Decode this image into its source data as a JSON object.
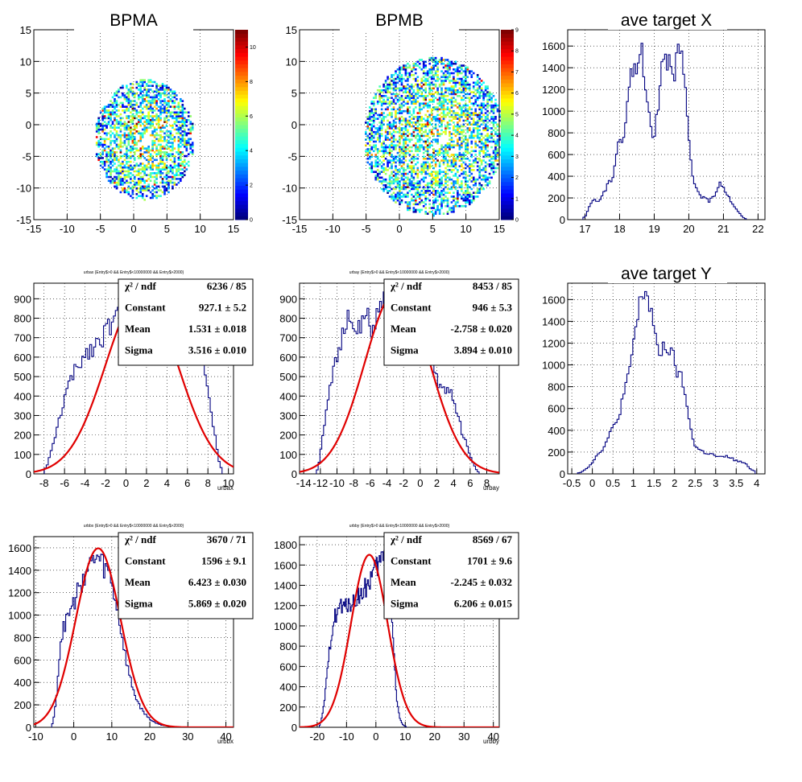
{
  "chart_data": [
    {
      "type": "heatmap",
      "title": "BPMA",
      "xlim": [
        -15,
        15
      ],
      "ylim": [
        -15,
        15
      ],
      "x_ticks": [
        "-15",
        "-10",
        "-5",
        "0",
        "5",
        "10",
        "15"
      ],
      "y_ticks": [
        "-15",
        "-10",
        "-5",
        "0",
        "5",
        "10",
        "15"
      ],
      "z_ticks": [
        "0",
        "2",
        "4",
        "6",
        "8",
        "10"
      ],
      "zlim": [
        0,
        11
      ],
      "grid": true,
      "spot": {
        "center": [
          1.5,
          -2.5
        ],
        "radius_x": 7.5,
        "radius_y": 9.5,
        "hole": [
          1.8,
          -2.7
        ]
      }
    },
    {
      "type": "heatmap",
      "title": "BPMB",
      "xlim": [
        -15,
        15
      ],
      "ylim": [
        -15,
        15
      ],
      "x_ticks": [
        "-15",
        "-10",
        "-5",
        "0",
        "5",
        "10",
        "15"
      ],
      "y_ticks": [
        "-15",
        "-10",
        "-5",
        "0",
        "5",
        "10",
        "15"
      ],
      "z_ticks": [
        "0",
        "1",
        "2",
        "3",
        "4",
        "5",
        "6",
        "7",
        "8",
        "9"
      ],
      "zlim": [
        0,
        9
      ],
      "grid": true,
      "spot": {
        "center": [
          5.0,
          -2.0
        ],
        "radius_x": 10.5,
        "radius_y": 12.5,
        "hole": [
          6.5,
          -2.5
        ]
      }
    },
    {
      "type": "line",
      "subtype": "histogram",
      "title": "ave target X",
      "xlim": [
        16.5,
        22.2
      ],
      "ylim": [
        0,
        1750
      ],
      "x_ticks": [
        "17",
        "18",
        "19",
        "20",
        "21",
        "22"
      ],
      "y_ticks": [
        "0",
        "200",
        "400",
        "600",
        "800",
        "1000",
        "1200",
        "1400",
        "1600"
      ],
      "grid": true,
      "series": [
        {
          "x": [
            17.0,
            17.2,
            17.4,
            17.6,
            17.8,
            17.9,
            18.0,
            18.1,
            18.2,
            18.3,
            18.5,
            18.6,
            18.7,
            18.8,
            18.9,
            19.0,
            19.1,
            19.2,
            19.3,
            19.4,
            19.5,
            19.6,
            19.7,
            19.8,
            19.9,
            20.0,
            20.1,
            20.2,
            20.4,
            20.6,
            20.8,
            20.9,
            21.0,
            21.2,
            21.4,
            21.6
          ],
          "values": [
            20,
            180,
            170,
            280,
            400,
            600,
            780,
            700,
            1000,
            1300,
            1400,
            1670,
            1300,
            1100,
            850,
            800,
            1000,
            1430,
            1580,
            1450,
            1500,
            1370,
            1580,
            1460,
            1200,
            700,
            400,
            300,
            200,
            170,
            260,
            360,
            300,
            180,
            80,
            10
          ]
        }
      ]
    },
    {
      "type": "line",
      "subtype": "histogram",
      "title": "ave target Y",
      "xlim": [
        -0.6,
        4.2
      ],
      "ylim": [
        0,
        1750
      ],
      "x_ticks": [
        "-0.5",
        "0",
        "0.5",
        "1",
        "1.5",
        "2",
        "2.5",
        "3",
        "3.5",
        "4"
      ],
      "y_ticks": [
        "0",
        "200",
        "400",
        "600",
        "800",
        "1000",
        "1200",
        "1400",
        "1600"
      ],
      "grid": true,
      "series": [
        {
          "x": [
            -0.3,
            -0.1,
            0.1,
            0.3,
            0.5,
            0.6,
            0.8,
            0.9,
            1.0,
            1.1,
            1.2,
            1.3,
            1.4,
            1.5,
            1.6,
            1.7,
            1.8,
            1.9,
            2.0,
            2.1,
            2.2,
            2.3,
            2.4,
            2.5,
            2.7,
            2.9,
            3.1,
            3.3,
            3.5,
            3.7,
            3.9
          ],
          "values": [
            10,
            60,
            160,
            260,
            420,
            480,
            780,
            900,
            1220,
            1400,
            1650,
            1680,
            1550,
            1350,
            1050,
            1150,
            1200,
            1080,
            1050,
            880,
            860,
            600,
            420,
            250,
            200,
            180,
            150,
            160,
            120,
            100,
            30
          ]
        }
      ]
    },
    {
      "type": "line",
      "subtype": "histogram+fit",
      "title": "urbax {Entry$>0 && Entry$<10000000 && Entry$>2000}",
      "xlabel": "urbax",
      "xlim": [
        -9,
        10.5
      ],
      "ylim": [
        0,
        980
      ],
      "x_ticks": [
        "-8",
        "-6",
        "-4",
        "-2",
        "0",
        "2",
        "4",
        "6",
        "8",
        "10"
      ],
      "y_ticks": [
        "0",
        "100",
        "200",
        "300",
        "400",
        "500",
        "600",
        "700",
        "800",
        "900"
      ],
      "grid": true,
      "stats": [
        {
          "label": "χ² / ndf",
          "value": "6236 / 85"
        },
        {
          "label": "Constant",
          "value": "927.1 ± 5.2"
        },
        {
          "label": "Mean",
          "value": "1.531 ± 0.018"
        },
        {
          "label": "Sigma",
          "value": "3.516 ± 0.010"
        }
      ],
      "fit": {
        "constant": 927.1,
        "mean": 1.531,
        "sigma": 3.516
      },
      "series": [
        {
          "x": [
            -7.8,
            -7.2,
            -6.6,
            -6.0,
            -5.4,
            -4.8,
            -4.2,
            -3.6,
            -3.0,
            -2.4,
            -1.8,
            -1.2,
            -0.6,
            0.0,
            6.4,
            6.8,
            7.2,
            7.6,
            8.0,
            8.4,
            8.8,
            9.2
          ],
          "values": [
            30,
            130,
            260,
            390,
            480,
            540,
            600,
            640,
            660,
            700,
            750,
            790,
            820,
            860,
            840,
            770,
            680,
            560,
            440,
            300,
            150,
            30
          ]
        }
      ]
    },
    {
      "type": "line",
      "subtype": "histogram+fit",
      "title": "urbay {Entry$>0 && Entry$<10000000 && Entry$>2000}",
      "xlabel": "urbay",
      "xlim": [
        -14.5,
        9.5
      ],
      "ylim": [
        0,
        980
      ],
      "x_ticks": [
        "-14",
        "-12",
        "-10",
        "-8",
        "-6",
        "-4",
        "-2",
        "0",
        "2",
        "4",
        "6",
        "8"
      ],
      "y_ticks": [
        "0",
        "100",
        "200",
        "300",
        "400",
        "500",
        "600",
        "700",
        "800",
        "900"
      ],
      "grid": true,
      "stats": [
        {
          "label": "χ² / ndf",
          "value": "8453 / 85"
        },
        {
          "label": "Constant",
          "value": "946 ± 5.3"
        },
        {
          "label": "Mean",
          "value": "-2.758 ± 0.020"
        },
        {
          "label": "Sigma",
          "value": "3.894 ± 0.010"
        }
      ],
      "fit": {
        "constant": 946,
        "mean": -2.758,
        "sigma": 3.894
      },
      "series": [
        {
          "x": [
            -12.3,
            -11.7,
            -11.1,
            -10.5,
            -9.9,
            -9.3,
            -8.7,
            -8.1,
            -7.5,
            -6.9,
            -6.3,
            -5.7,
            -5.1,
            -4.5,
            1.5,
            2.1,
            2.7,
            3.3,
            3.9,
            4.5,
            5.1,
            5.7,
            6.3,
            6.9
          ],
          "values": [
            20,
            200,
            400,
            530,
            620,
            700,
            790,
            760,
            740,
            760,
            800,
            740,
            820,
            880,
            560,
            470,
            450,
            430,
            400,
            320,
            200,
            140,
            60,
            10
          ]
        }
      ]
    },
    {
      "type": "line",
      "subtype": "histogram+fit",
      "title": "urbbx {Entry$>0 && Entry$<10000000 && Entry$>2000}",
      "xlabel": "urbbx",
      "xlim": [
        -10.5,
        42
      ],
      "ylim": [
        0,
        1700
      ],
      "x_ticks": [
        "-10",
        "0",
        "10",
        "20",
        "30",
        "40"
      ],
      "y_ticks": [
        "0",
        "200",
        "400",
        "600",
        "800",
        "1000",
        "1200",
        "1400",
        "1600"
      ],
      "grid": true,
      "stats": [
        {
          "label": "χ² / ndf",
          "value": "3670 / 71"
        },
        {
          "label": "Constant",
          "value": "1596 ± 9.1"
        },
        {
          "label": "Mean",
          "value": "6.423 ± 0.030"
        },
        {
          "label": "Sigma",
          "value": "5.869 ± 0.020"
        }
      ],
      "fit": {
        "constant": 1596,
        "mean": 6.423,
        "sigma": 5.869
      },
      "series": [
        {
          "x": [
            -5.5,
            -4.5,
            -3.5,
            -2.5,
            -1.5,
            -0.5,
            0.5,
            1.5,
            2.5,
            3.5,
            4.5,
            5.5,
            6.5,
            7.5,
            8.5,
            9.5,
            10.5,
            11.5,
            12.5,
            13.5,
            14.5,
            15.5,
            16.5,
            17.5,
            18.5,
            19.5,
            20.5,
            21.5,
            23,
            25,
            27
          ],
          "values": [
            30,
            300,
            750,
            900,
            1000,
            1050,
            1150,
            1250,
            1350,
            1400,
            1450,
            1500,
            1500,
            1450,
            1400,
            1350,
            1200,
            1050,
            850,
            650,
            480,
            350,
            250,
            180,
            130,
            90,
            60,
            40,
            20,
            10,
            5
          ]
        }
      ]
    },
    {
      "type": "line",
      "subtype": "histogram+fit",
      "title": "urbby {Entry$>0 && Entry$<10000000 && Entry$>2000}",
      "xlabel": "urbby",
      "xlim": [
        -26,
        42
      ],
      "ylim": [
        0,
        1880
      ],
      "x_ticks": [
        "-20",
        "-10",
        "0",
        "10",
        "20",
        "30",
        "40"
      ],
      "y_ticks": [
        "0",
        "200",
        "400",
        "600",
        "800",
        "1000",
        "1200",
        "1400",
        "1600",
        "1800"
      ],
      "grid": true,
      "stats": [
        {
          "label": "χ² / ndf",
          "value": "8569 / 67"
        },
        {
          "label": "Constant",
          "value": "1701 ± 9.6"
        },
        {
          "label": "Mean",
          "value": "-2.245 ± 0.032"
        },
        {
          "label": "Sigma",
          "value": "6.206 ± 0.015"
        }
      ],
      "fit": {
        "constant": 1701,
        "mean": -2.245,
        "sigma": 6.206
      },
      "series": [
        {
          "x": [
            -19,
            -18,
            -17,
            -16,
            -15,
            -14,
            -13,
            -12,
            -11,
            -10,
            -9,
            -8,
            -7,
            -6,
            -5,
            -4,
            -3,
            -2,
            -1,
            0,
            1,
            2,
            3,
            4,
            5,
            6,
            7,
            8,
            9,
            10
          ],
          "values": [
            20,
            150,
            400,
            700,
            950,
            1100,
            1150,
            1200,
            1150,
            1200,
            1250,
            1200,
            1250,
            1300,
            1300,
            1350,
            1400,
            1450,
            1500,
            1550,
            1600,
            1650,
            1700,
            1750,
            1300,
            800,
            300,
            100,
            30,
            10
          ]
        }
      ]
    }
  ]
}
